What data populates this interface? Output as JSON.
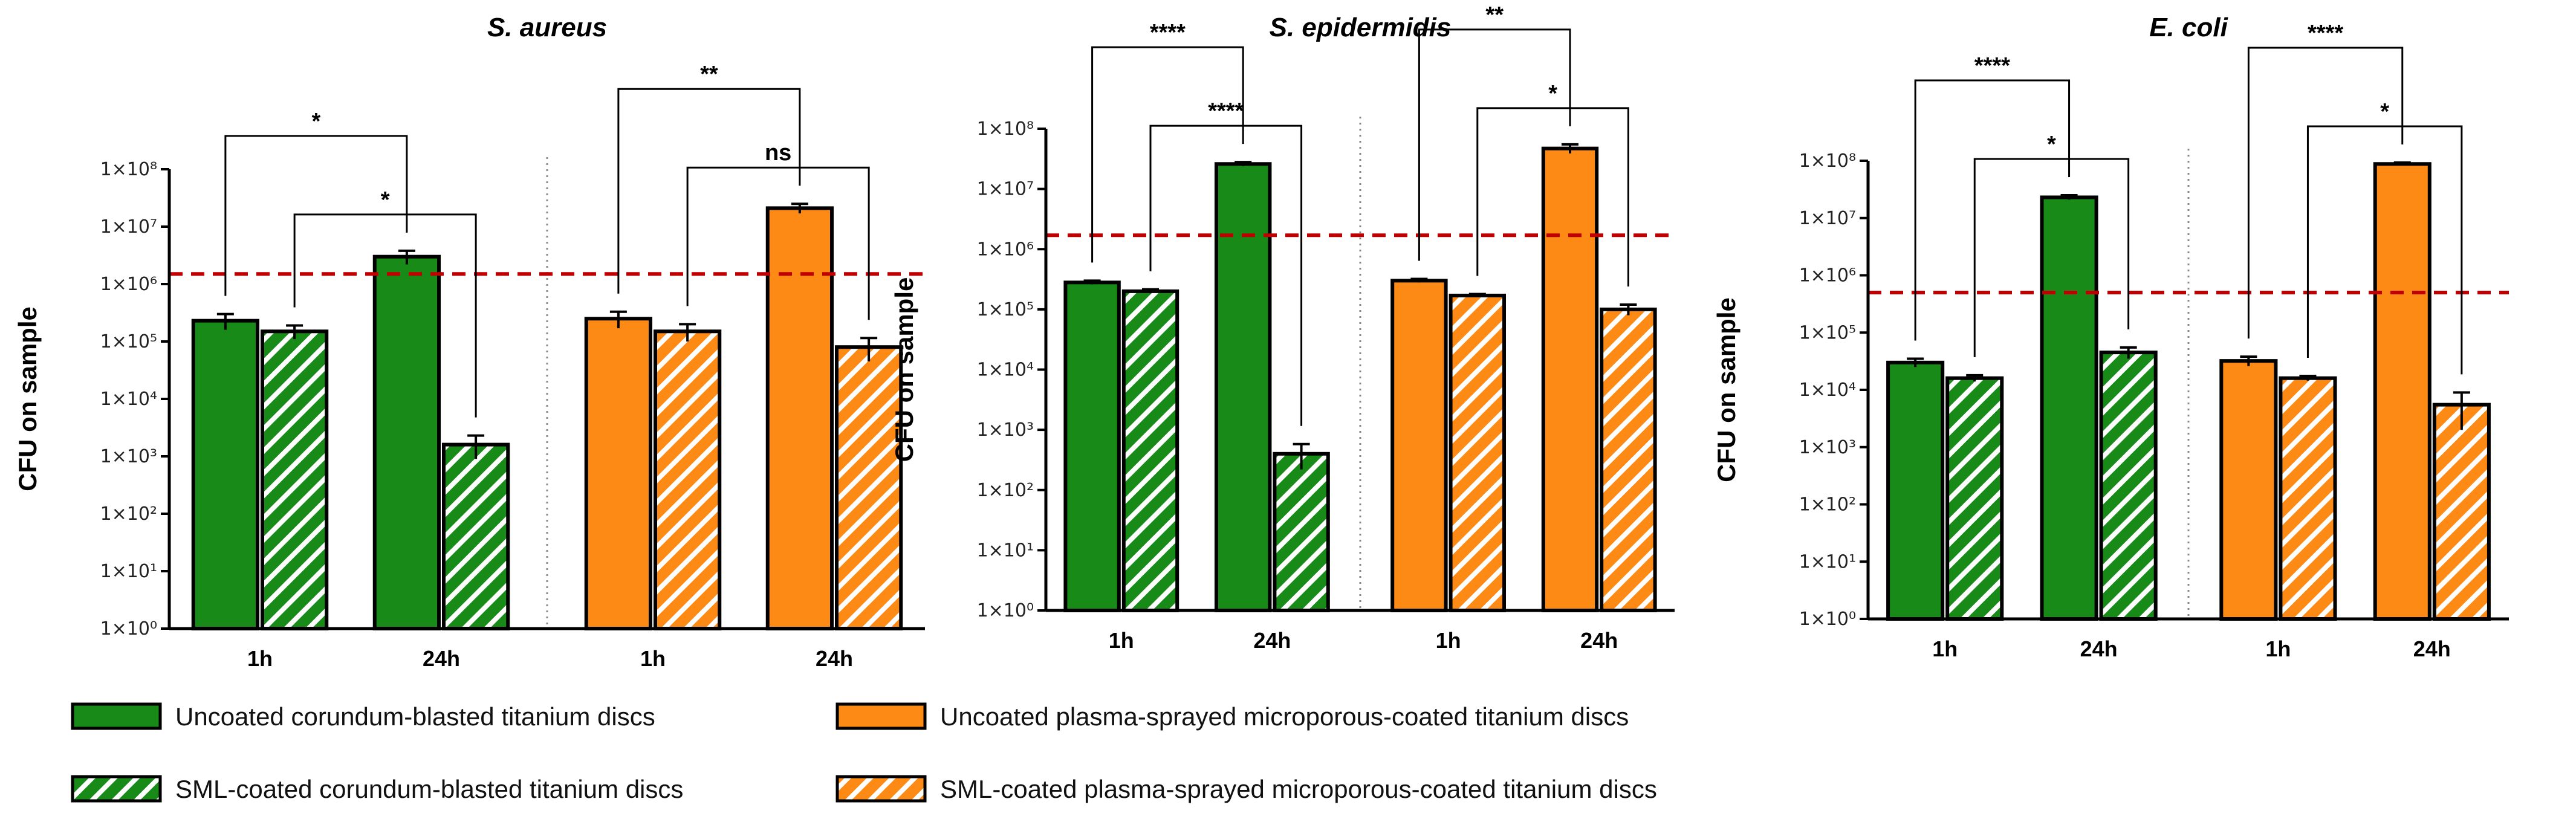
{
  "chart_data": [
    {
      "type": "bar",
      "title": "S. aureus",
      "ylabel": "CFU on sample",
      "categories": [
        "1h",
        "24h",
        "1h",
        "24h"
      ],
      "series": [
        {
          "name": "Uncoated corundum-blasted titanium discs",
          "color": "#188a18",
          "hatched": false,
          "values": [
            230000,
            3000000,
            null,
            null
          ],
          "errors": [
            70000,
            800000,
            null,
            null
          ]
        },
        {
          "name": "SML-coated corundum-blasted titanium discs",
          "color": "#188a18",
          "hatched": true,
          "values": [
            150000,
            1600,
            null,
            null
          ],
          "errors": [
            40000,
            700,
            null,
            null
          ]
        },
        {
          "name": "Uncoated plasma-sprayed microporous-coated titanium discs",
          "color": "#fc8a14",
          "hatched": false,
          "values": [
            null,
            null,
            250000,
            21000000
          ],
          "errors": [
            null,
            null,
            80000,
            4000000
          ]
        },
        {
          "name": "SML-coated plasma-sprayed microporous-coated titanium discs",
          "color": "#fc8a14",
          "hatched": true,
          "values": [
            null,
            null,
            150000,
            80000
          ],
          "errors": [
            null,
            null,
            50000,
            35000
          ]
        }
      ],
      "log_scale": true,
      "ylim": [
        1,
        100000000
      ],
      "yticks": [
        {
          "value": 1,
          "label": "1×10⁰"
        },
        {
          "value": 10,
          "label": "1×10¹"
        },
        {
          "value": 100,
          "label": "1×10²"
        },
        {
          "value": 1000,
          "label": "1×10³"
        },
        {
          "value": 10000,
          "label": "1×10⁴"
        },
        {
          "value": 100000,
          "label": "1×10⁵"
        },
        {
          "value": 1000000,
          "label": "1×10⁶"
        },
        {
          "value": 10000000,
          "label": "1×10⁷"
        },
        {
          "value": 100000000,
          "label": "1×10⁸"
        }
      ],
      "threshold": 1500000,
      "threshold_color": "#c00000",
      "annotations": [
        {
          "label": "*"
        },
        {
          "label": "*"
        },
        {
          "label": "**"
        },
        {
          "label": "ns"
        }
      ]
    },
    {
      "type": "bar",
      "title": "S. epidermidis",
      "ylabel": "CFU on sample",
      "categories": [
        "1h",
        "24h",
        "1h",
        "24h"
      ],
      "series": [
        {
          "color": "#188a18",
          "hatched": false,
          "values": [
            280000,
            26000000,
            null,
            null
          ],
          "errors": [
            20000,
            2000000,
            null,
            null
          ]
        },
        {
          "color": "#188a18",
          "hatched": true,
          "values": [
            200000,
            400,
            null,
            null
          ],
          "errors": [
            15000,
            180,
            null,
            null
          ]
        },
        {
          "color": "#fc8a14",
          "hatched": false,
          "values": [
            null,
            null,
            300000,
            47000000
          ],
          "errors": [
            null,
            null,
            20000,
            8000000
          ]
        },
        {
          "color": "#fc8a14",
          "hatched": true,
          "values": [
            null,
            null,
            170000,
            100000
          ],
          "errors": [
            null,
            null,
            10000,
            20000
          ]
        }
      ],
      "log_scale": true,
      "ylim": [
        1,
        100000000
      ],
      "yticks": [
        {
          "value": 1,
          "label": "1×10⁰"
        },
        {
          "value": 10,
          "label": "1×10¹"
        },
        {
          "value": 100,
          "label": "1×10²"
        },
        {
          "value": 1000,
          "label": "1×10³"
        },
        {
          "value": 10000,
          "label": "1×10⁴"
        },
        {
          "value": 100000,
          "label": "1×10⁵"
        },
        {
          "value": 1000000,
          "label": "1×10⁶"
        },
        {
          "value": 10000000,
          "label": "1×10⁷"
        },
        {
          "value": 100000000,
          "label": "1×10⁸"
        }
      ],
      "threshold": 1700000,
      "threshold_color": "#c00000",
      "annotations": [
        {
          "label": "****"
        },
        {
          "label": "****"
        },
        {
          "label": "**"
        },
        {
          "label": "*"
        }
      ]
    },
    {
      "type": "bar",
      "title": "E. coli",
      "ylabel": "CFU on sample",
      "categories": [
        "1h",
        "24h",
        "1h",
        "24h"
      ],
      "series": [
        {
          "color": "#188a18",
          "hatched": false,
          "values": [
            30000,
            23000000,
            null,
            null
          ],
          "errors": [
            5000,
            2000000,
            null,
            null
          ]
        },
        {
          "color": "#188a18",
          "hatched": true,
          "values": [
            16000,
            45000,
            null,
            null
          ],
          "errors": [
            2000,
            10000,
            null,
            null
          ]
        },
        {
          "color": "#fc8a14",
          "hatched": false,
          "values": [
            null,
            null,
            32000,
            88000000
          ],
          "errors": [
            null,
            null,
            6000,
            5000000
          ]
        },
        {
          "color": "#fc8a14",
          "hatched": true,
          "values": [
            null,
            null,
            16000,
            5500
          ],
          "errors": [
            null,
            null,
            1500,
            3500
          ]
        }
      ],
      "log_scale": true,
      "ylim": [
        1,
        100000000
      ],
      "yticks": [
        {
          "value": 1,
          "label": "1×10⁰"
        },
        {
          "value": 10,
          "label": "1×10¹"
        },
        {
          "value": 100,
          "label": "1×10²"
        },
        {
          "value": 1000,
          "label": "1×10³"
        },
        {
          "value": 10000,
          "label": "1×10⁴"
        },
        {
          "value": 100000,
          "label": "1×10⁵"
        },
        {
          "value": 1000000,
          "label": "1×10⁶"
        },
        {
          "value": 10000000,
          "label": "1×10⁷"
        },
        {
          "value": 100000000,
          "label": "1×10⁸"
        }
      ],
      "threshold": 500000,
      "threshold_color": "#c00000",
      "annotations": [
        {
          "label": "****"
        },
        {
          "label": "*"
        },
        {
          "label": "****"
        },
        {
          "label": "*"
        }
      ]
    }
  ]
}
